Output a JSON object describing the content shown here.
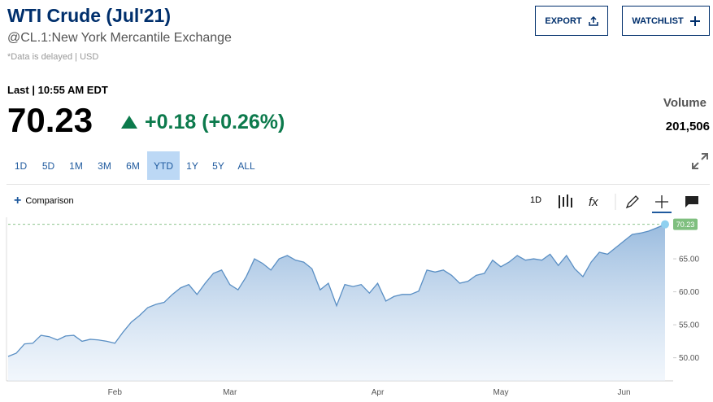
{
  "header": {
    "title": "WTI Crude (Jul'21)",
    "exchange": "@CL.1:New York Mercantile Exchange",
    "note": "*Data is delayed | USD",
    "last_label": "Last | 10:55 AM EDT",
    "price": "70.23",
    "change": "+0.18 (+0.26%)",
    "volume_label": "Volume",
    "volume": "201,506",
    "export": "EXPORT",
    "watchlist": "WATCHLIST"
  },
  "ranges": [
    "1D",
    "5D",
    "1M",
    "3M",
    "6M",
    "YTD",
    "1Y",
    "5Y",
    "ALL"
  ],
  "active_range": "YTD",
  "toolbar": {
    "comparison": "Comparison",
    "interval": "1D"
  },
  "chart_data": {
    "type": "area",
    "color": "#5a8fc4",
    "categories": [
      null,
      null,
      null,
      null,
      null,
      null,
      null,
      null,
      null,
      null,
      null,
      null,
      null,
      "Feb",
      null,
      null,
      null,
      null,
      null,
      null,
      null,
      null,
      null,
      null,
      null,
      null,
      null,
      "Mar",
      null,
      null,
      null,
      null,
      null,
      null,
      null,
      null,
      null,
      null,
      null,
      null,
      null,
      null,
      null,
      null,
      null,
      "Apr",
      null,
      null,
      null,
      null,
      null,
      null,
      null,
      null,
      null,
      null,
      null,
      null,
      null,
      null,
      "May",
      null,
      null,
      null,
      null,
      null,
      null,
      null,
      null,
      null,
      null,
      null,
      null,
      null,
      null,
      "Jun",
      null,
      null,
      null,
      null,
      null
    ],
    "values": [
      50.2,
      50.7,
      52.1,
      52.2,
      53.4,
      53.2,
      52.7,
      53.3,
      53.4,
      52.5,
      52.8,
      52.7,
      52.5,
      52.2,
      53.9,
      55.4,
      56.4,
      57.6,
      58.1,
      58.4,
      59.6,
      60.6,
      61.1,
      59.6,
      61.3,
      62.8,
      63.3,
      61.1,
      60.3,
      62.3,
      65.0,
      64.3,
      63.3,
      65.0,
      65.5,
      64.8,
      64.5,
      63.5,
      60.3,
      61.3,
      57.9,
      61.1,
      60.8,
      61.1,
      59.8,
      61.3,
      58.6,
      59.3,
      59.6,
      59.6,
      60.1,
      63.3,
      63.0,
      63.3,
      62.5,
      61.3,
      61.6,
      62.5,
      62.8,
      64.8,
      63.8,
      64.5,
      65.5,
      64.8,
      65.0,
      64.8,
      65.7,
      64.0,
      65.5,
      63.5,
      62.3,
      64.5,
      66.0,
      65.7,
      66.7,
      67.7,
      68.7,
      68.9,
      69.2,
      69.7,
      70.23
    ],
    "ylim": [
      46.5,
      71.3
    ],
    "yticks": [
      {
        "value": 50,
        "label": "50.00"
      },
      {
        "value": 55,
        "label": "55.00"
      },
      {
        "value": 60,
        "label": "60.00"
      },
      {
        "value": 65,
        "label": "65.00"
      }
    ]
  }
}
